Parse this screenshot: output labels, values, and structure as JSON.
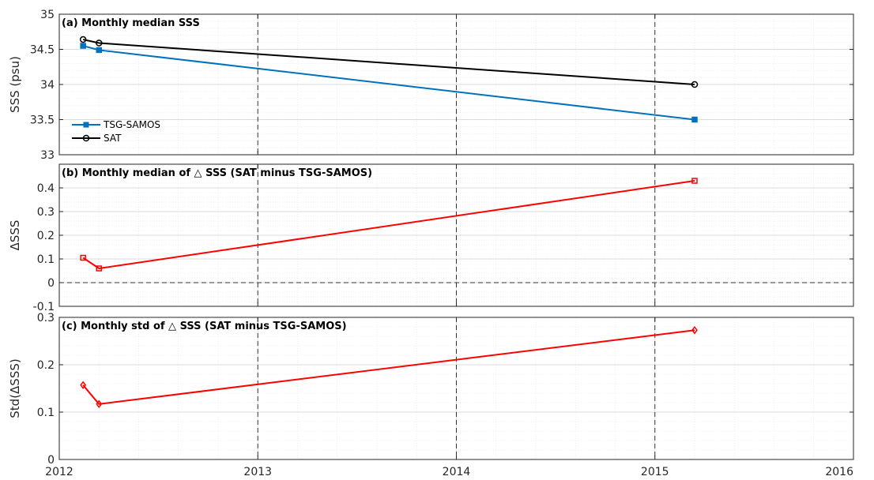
{
  "chart_data": [
    {
      "type": "line",
      "title": "(a) Monthly median SSS",
      "xlabel": "",
      "ylabel": "SSS (psu)",
      "xlim": [
        2012,
        2016
      ],
      "ylim": [
        33,
        35
      ],
      "xticks": [
        2012,
        2013,
        2014,
        2015,
        2016
      ],
      "xtick_labels": [
        "2012",
        "2013",
        "2014",
        "2015",
        "2016"
      ],
      "yticks": [
        33,
        33.5,
        34,
        34.5,
        35
      ],
      "ytick_labels": [
        "33",
        "33.5",
        "34",
        "34.5",
        "35"
      ],
      "grid": true,
      "legend": "left",
      "vlines": [
        2013,
        2014,
        2015
      ],
      "series": [
        {
          "name": "TSG-SAMOS",
          "color": "#0072BD",
          "marker": "square",
          "x": [
            2012.12,
            2012.2,
            2015.2
          ],
          "y": [
            34.55,
            34.49,
            33.5
          ]
        },
        {
          "name": "SAT",
          "color": "#000000",
          "marker": "circle",
          "x": [
            2012.12,
            2012.2,
            2015.2
          ],
          "y": [
            34.64,
            34.59,
            34.0
          ]
        }
      ]
    },
    {
      "type": "line",
      "title": "(b) Monthly median of △ SSS (SAT minus TSG-SAMOS)",
      "xlabel": "",
      "ylabel": "ΔSSS",
      "xlim": [
        2012,
        2016
      ],
      "ylim": [
        -0.1,
        0.5
      ],
      "xticks": [
        2012,
        2013,
        2014,
        2015,
        2016
      ],
      "xtick_labels": [],
      "yticks": [
        -0.1,
        0,
        0.1,
        0.2,
        0.3,
        0.4
      ],
      "ytick_labels": [
        "-0.1",
        "0",
        "0.1",
        "0.2",
        "0.3",
        "0.4"
      ],
      "grid": true,
      "hlines": [
        0
      ],
      "vlines": [
        2013,
        2014,
        2015
      ],
      "series": [
        {
          "color": "#FF0000",
          "marker": "square",
          "x": [
            2012.12,
            2012.2,
            2015.2
          ],
          "y": [
            0.105,
            0.06,
            0.43
          ]
        }
      ]
    },
    {
      "type": "line",
      "title": "(c) Monthly std of △ SSS (SAT minus TSG-SAMOS)",
      "xlabel": "",
      "ylabel": "Std(ΔSSS)",
      "xlim": [
        2012,
        2016
      ],
      "ylim": [
        0,
        0.3
      ],
      "xticks": [
        2012,
        2013,
        2014,
        2015,
        2016
      ],
      "xtick_labels": [
        "2012",
        "2013",
        "2014",
        "2015",
        "2016"
      ],
      "yticks": [
        0,
        0.1,
        0.2,
        0.3
      ],
      "ytick_labels": [
        "0",
        "0.1",
        "0.2",
        "0.3"
      ],
      "grid": true,
      "vlines": [
        2013,
        2014,
        2015
      ],
      "series": [
        {
          "color": "#FF0000",
          "marker": "diamond",
          "x": [
            2012.12,
            2012.2,
            2015.2
          ],
          "y": [
            0.157,
            0.117,
            0.273
          ]
        }
      ]
    }
  ]
}
